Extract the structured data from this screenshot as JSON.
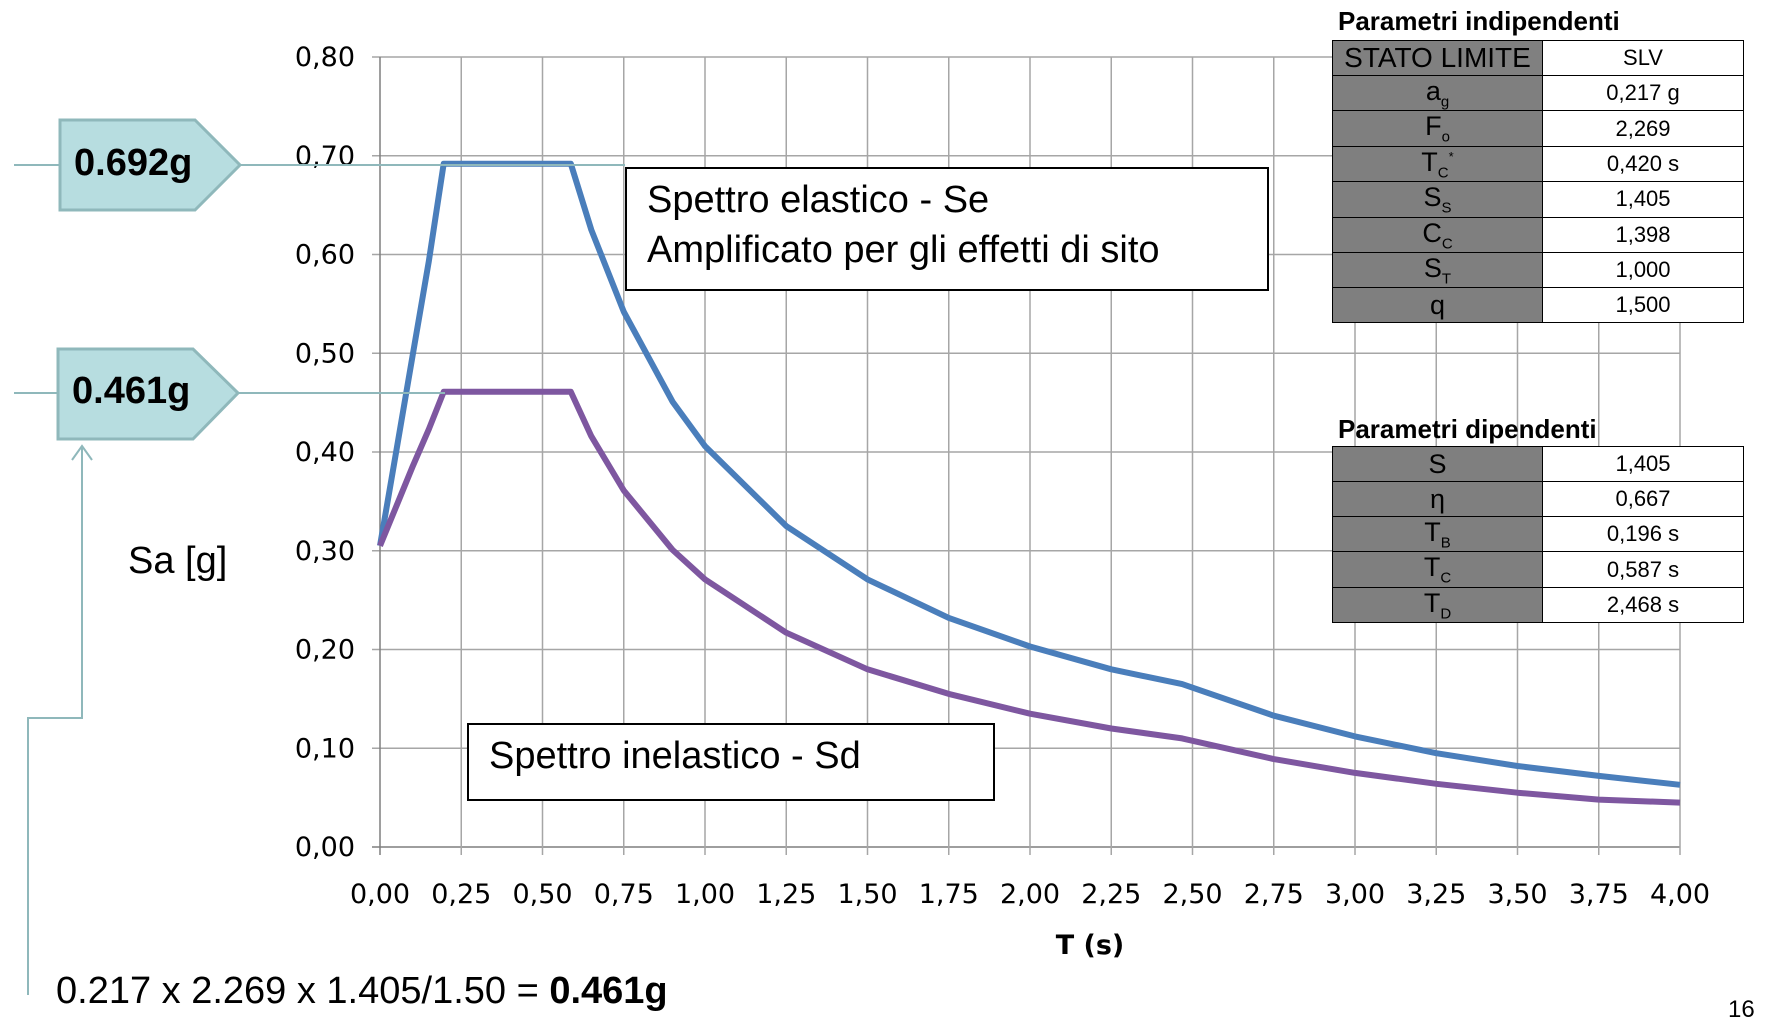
{
  "chart_data": {
    "type": "line",
    "xlabel": "T (s)",
    "ylabel": "Sa [g]",
    "xlim": [
      0,
      4
    ],
    "ylim": [
      0,
      0.8
    ],
    "x_ticks": [
      "0,00",
      "0,25",
      "0,50",
      "0,75",
      "1,00",
      "1,25",
      "1,50",
      "1,75",
      "2,00",
      "2,25",
      "2,50",
      "2,75",
      "3,00",
      "3,25",
      "3,50",
      "3,75",
      "4,00"
    ],
    "y_ticks": [
      "0,00",
      "0,10",
      "0,20",
      "0,30",
      "0,40",
      "0,50",
      "0,60",
      "0,70",
      "0,80"
    ],
    "grid": true,
    "series": [
      {
        "name": "Spettro elastico - Se",
        "color": "#4a7ebb",
        "x": [
          0,
          0.05,
          0.1,
          0.15,
          0.196,
          0.25,
          0.35,
          0.45,
          0.587,
          0.65,
          0.75,
          0.9,
          1.0,
          1.25,
          1.5,
          1.75,
          2.0,
          2.25,
          2.468,
          2.75,
          3.0,
          3.25,
          3.5,
          3.75,
          4.0
        ],
        "y": [
          0.305,
          0.401,
          0.497,
          0.593,
          0.692,
          0.692,
          0.692,
          0.692,
          0.692,
          0.625,
          0.542,
          0.451,
          0.406,
          0.325,
          0.271,
          0.232,
          0.203,
          0.18,
          0.165,
          0.133,
          0.112,
          0.095,
          0.082,
          0.072,
          0.063
        ]
      },
      {
        "name": "Spettro inelastico - Sd",
        "color": "#7e57a0",
        "x": [
          0,
          0.05,
          0.1,
          0.15,
          0.196,
          0.25,
          0.35,
          0.45,
          0.587,
          0.65,
          0.75,
          0.9,
          1.0,
          1.25,
          1.5,
          1.75,
          2.0,
          2.25,
          2.468,
          2.75,
          3.0,
          3.25,
          3.5,
          3.75,
          4.0
        ],
        "y": [
          0.305,
          0.345,
          0.385,
          0.423,
          0.461,
          0.461,
          0.461,
          0.461,
          0.461,
          0.416,
          0.361,
          0.301,
          0.271,
          0.217,
          0.18,
          0.155,
          0.135,
          0.12,
          0.11,
          0.089,
          0.075,
          0.064,
          0.055,
          0.048,
          0.045
        ]
      }
    ],
    "annotations": {
      "elastic_label_line1": "Spettro elastico  - Se",
      "elastic_label_line2": "Amplificato per gli effetti di sito",
      "inelastic_label": "Spettro inelastico  - Sd"
    }
  },
  "callouts": {
    "peak_elastic": "0.692g",
    "peak_inelastic": "0.461g",
    "fill_color": "#b7dde0",
    "border_color": "#8fb8bb"
  },
  "formula": {
    "expression": "0.217 x 2.269 x 1.405/1.50 = ",
    "result": "0.461g"
  },
  "page_number": "16",
  "independent_params": {
    "title": "Parametri indipendenti",
    "header_key": "STATO LIMITE",
    "header_value": "SLV",
    "rows": [
      {
        "k_main": "a",
        "k_sub": "g",
        "k_sup": "",
        "value": "0,217 g"
      },
      {
        "k_main": "F",
        "k_sub": "o",
        "k_sup": "",
        "value": "2,269"
      },
      {
        "k_main": "T",
        "k_sub": "C",
        "k_sup": "*",
        "value": "0,420 s"
      },
      {
        "k_main": "S",
        "k_sub": "S",
        "k_sup": "",
        "value": "1,405"
      },
      {
        "k_main": "C",
        "k_sub": "C",
        "k_sup": "",
        "value": "1,398"
      },
      {
        "k_main": "S",
        "k_sub": "T",
        "k_sup": "",
        "value": "1,000"
      },
      {
        "k_main": "q",
        "k_sub": "",
        "k_sup": "",
        "value": "1,500"
      }
    ]
  },
  "dependent_params": {
    "title": "Parametri dipendenti",
    "rows": [
      {
        "k_main": "S",
        "k_sub": "",
        "k_sup": "",
        "value": "1,405"
      },
      {
        "k_main": "η",
        "k_sub": "",
        "k_sup": "",
        "value": "0,667"
      },
      {
        "k_main": "T",
        "k_sub": "B",
        "k_sup": "",
        "value": "0,196 s"
      },
      {
        "k_main": "T",
        "k_sub": "C",
        "k_sup": "",
        "value": "0,587 s"
      },
      {
        "k_main": "T",
        "k_sub": "D",
        "k_sup": "",
        "value": "2,468 s"
      }
    ]
  }
}
